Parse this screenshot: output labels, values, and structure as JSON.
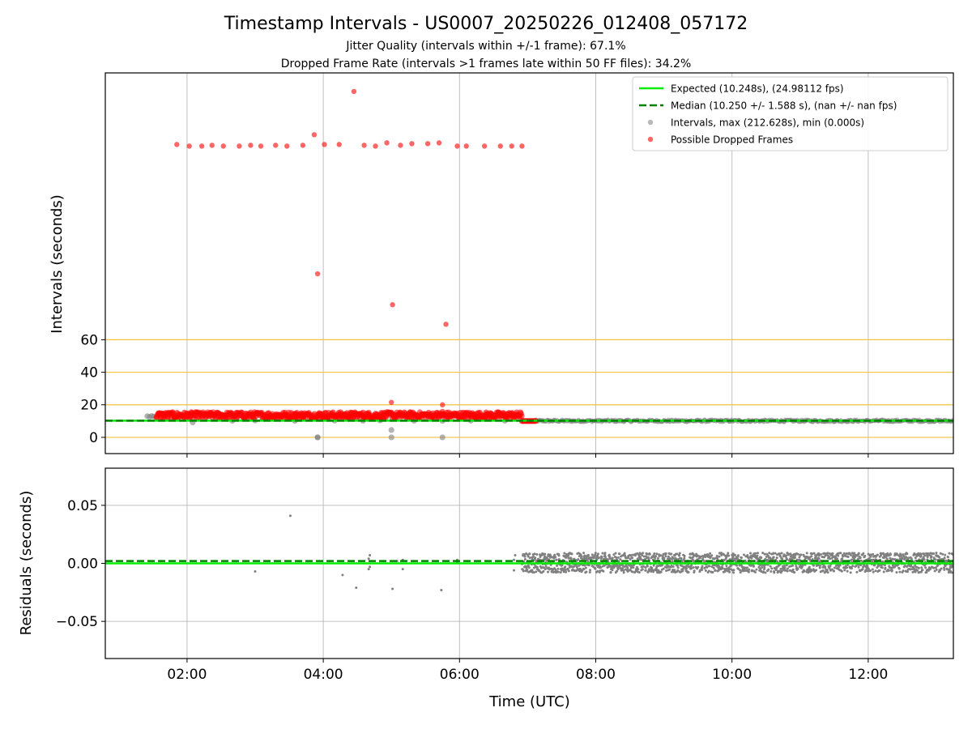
{
  "figure": {
    "title": "Timestamp Intervals - US0007_20250226_012408_057172",
    "subtitle1": "Jitter Quality (intervals within +/-1 frame): 67.1%",
    "subtitle2": "Dropped Frame Rate (intervals >1 frames late within 50 FF files): 34.2%"
  },
  "colors": {
    "expected": "#00ee00",
    "median": "#008000",
    "intervals": "#808080",
    "dropped": "#ff0000",
    "threshold": "#f5c242",
    "grid": "#b0b0b0"
  },
  "chart_data": [
    {
      "type": "scatter",
      "panel": "top",
      "ylabel": "Intervals (seconds)",
      "yticks": [
        0,
        20,
        40,
        60
      ],
      "ylim": [
        -10,
        224
      ],
      "xlim": [
        "00:48",
        "13:15"
      ],
      "xticks": [
        "02:00",
        "04:00",
        "06:00",
        "08:00",
        "10:00",
        "12:00"
      ],
      "grid": true,
      "hlines": [
        0,
        20,
        40,
        60
      ],
      "legend": {
        "placement": "top-right",
        "entries": [
          "Expected (10.248s), (24.98112 fps)",
          "Median (10.250 +/- 1.588 s), (nan +/- nan fps)",
          "Intervals, max (212.628s), min (0.000s)",
          "Possible Dropped Frames"
        ]
      },
      "series": [
        {
          "name": "Expected (10.248s), (24.98112 fps)",
          "kind": "hline",
          "y": 10.248
        },
        {
          "name": "Median (10.250 +/- 1.588 s), (nan +/- nan fps)",
          "kind": "hline",
          "y": 10.25
        },
        {
          "name": "Intervals, max (212.628s), min (0.000s)",
          "kind": "scatter",
          "points": [
            [
              "01:25",
              13
            ],
            [
              "01:27",
              12.6
            ],
            [
              "01:29",
              13.1
            ],
            [
              "01:31",
              12.8
            ],
            [
              "02:05",
              9.2
            ],
            [
              "02:40",
              10.2
            ],
            [
              "03:00",
              10.4
            ],
            [
              "03:35",
              10.1
            ],
            [
              "03:55",
              0
            ],
            [
              "03:55",
              0
            ],
            [
              "04:10",
              10.3
            ],
            [
              "04:35",
              10.2
            ],
            [
              "04:50",
              10.4
            ],
            [
              "05:00",
              0
            ],
            [
              "05:00",
              4.5
            ],
            [
              "05:20",
              10.2
            ],
            [
              "05:45",
              0
            ],
            [
              "05:45",
              10.1
            ],
            [
              "06:10",
              10.3
            ],
            [
              "06:40",
              10.2
            ]
          ],
          "band": {
            "from": "07:05",
            "to": "13:15",
            "ymin": 9.4,
            "ymax": 10.9
          }
        },
        {
          "name": "Possible Dropped Frames",
          "kind": "scatter",
          "points": [
            [
              "01:51",
              180
            ],
            [
              "02:02",
              179
            ],
            [
              "02:13",
              179
            ],
            [
              "02:22",
              179.5
            ],
            [
              "02:32",
              179
            ],
            [
              "02:46",
              179
            ],
            [
              "02:56",
              179.5
            ],
            [
              "03:05",
              179
            ],
            [
              "03:18",
              179.5
            ],
            [
              "03:28",
              179
            ],
            [
              "03:42",
              179.5
            ],
            [
              "03:52",
              186
            ],
            [
              "04:01",
              180
            ],
            [
              "04:14",
              180
            ],
            [
              "04:27",
              212.6
            ],
            [
              "04:36",
              179.5
            ],
            [
              "04:46",
              179
            ],
            [
              "04:56",
              181
            ],
            [
              "05:08",
              179.5
            ],
            [
              "05:18",
              180.5
            ],
            [
              "05:32",
              180.5
            ],
            [
              "05:42",
              181
            ],
            [
              "05:58",
              179
            ],
            [
              "06:06",
              179
            ],
            [
              "06:22",
              179
            ],
            [
              "06:36",
              179
            ],
            [
              "06:46",
              179
            ],
            [
              "06:55",
              179
            ],
            [
              "03:55",
              100.5
            ],
            [
              "05:01",
              81.5
            ],
            [
              "05:48",
              69.5
            ],
            [
              "05:00",
              21.5
            ],
            [
              "05:00",
              15.5
            ],
            [
              "05:45",
              20
            ],
            [
              "05:45",
              16
            ]
          ],
          "band": {
            "from": "01:33",
            "to": "06:55",
            "ymin": 11.5,
            "ymax": 15.5
          },
          "tail": {
            "from": "06:55",
            "to": "07:08",
            "y": 10
          }
        }
      ]
    },
    {
      "type": "scatter",
      "panel": "bottom",
      "xlabel": "Time (UTC)",
      "ylabel": "Residuals (seconds)",
      "yticks": [
        0.05,
        0.0,
        -0.05
      ],
      "ytick_labels": [
        "0.05",
        "0.00",
        "−0.05"
      ],
      "ylim": [
        -0.082,
        0.082
      ],
      "xlim": [
        "00:48",
        "13:15"
      ],
      "xticks": [
        "02:00",
        "04:00",
        "06:00",
        "08:00",
        "10:00",
        "12:00"
      ],
      "grid": true,
      "series": [
        {
          "name": "expected residual",
          "kind": "hline",
          "y": 0
        },
        {
          "name": "median residual",
          "kind": "hline",
          "y": 0.002
        },
        {
          "name": "residuals",
          "kind": "scatter",
          "points": [
            [
              "03:00",
              -0.007
            ],
            [
              "03:31",
              0.041
            ],
            [
              "04:17",
              -0.01
            ],
            [
              "04:29",
              -0.021
            ],
            [
              "04:40",
              -0.005
            ],
            [
              "04:40",
              0.004
            ],
            [
              "04:41",
              0.007
            ],
            [
              "04:41",
              -0.003
            ],
            [
              "05:01",
              -0.022
            ],
            [
              "05:05",
              0.002
            ],
            [
              "05:10",
              -0.005
            ],
            [
              "05:10",
              0.003
            ],
            [
              "05:44",
              -0.023
            ],
            [
              "05:58",
              0.003
            ],
            [
              "05:58",
              0.001
            ],
            [
              "06:48",
              -0.006
            ],
            [
              "06:48",
              0.003
            ],
            [
              "06:49",
              0.007
            ]
          ],
          "band": {
            "from": "06:55",
            "to": "13:15",
            "ymin": -0.008,
            "ymax": 0.009
          }
        }
      ]
    }
  ]
}
